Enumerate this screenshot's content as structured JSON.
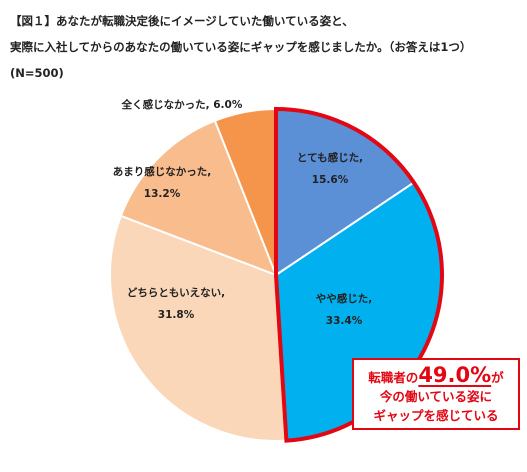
{
  "figure": {
    "title_line1": "【図１】あなたが転職決定後にイメージしていた働いている姿と、",
    "title_line2": "実際に入社してからのあなたの働いている姿にギャップを感じましたか。（お答えは1つ）",
    "title_line3": "(N=500)"
  },
  "callout": {
    "prefix": "転職者の",
    "highlight": "49.0%",
    "suffix": "が",
    "line2": "今の働いている姿に",
    "line3": "ギャップを感じている",
    "color": "#e30613"
  },
  "chart_data": {
    "type": "pie",
    "start_angle_deg": 0,
    "direction": "clockwise",
    "slices": [
      {
        "label": "とても感じた,",
        "value": 15.6,
        "value_label": "15.6%",
        "color": "#5b8fd6"
      },
      {
        "label": "やや感じた,",
        "value": 33.4,
        "value_label": "33.4%",
        "color": "#00b0ef"
      },
      {
        "label": "どちらともいえない,",
        "value": 31.8,
        "value_label": "31.8%",
        "color": "#fad7b8"
      },
      {
        "label": "あまり感じなかった,",
        "value": 13.2,
        "value_label": "13.2%",
        "color": "#f9bc8c"
      },
      {
        "label": "全く感じなかった, 6.0%",
        "value": 6.0,
        "value_label": "",
        "color": "#f5954c"
      }
    ],
    "highlight": {
      "slices": [
        0,
        1
      ],
      "outline_color": "#e30613"
    }
  }
}
